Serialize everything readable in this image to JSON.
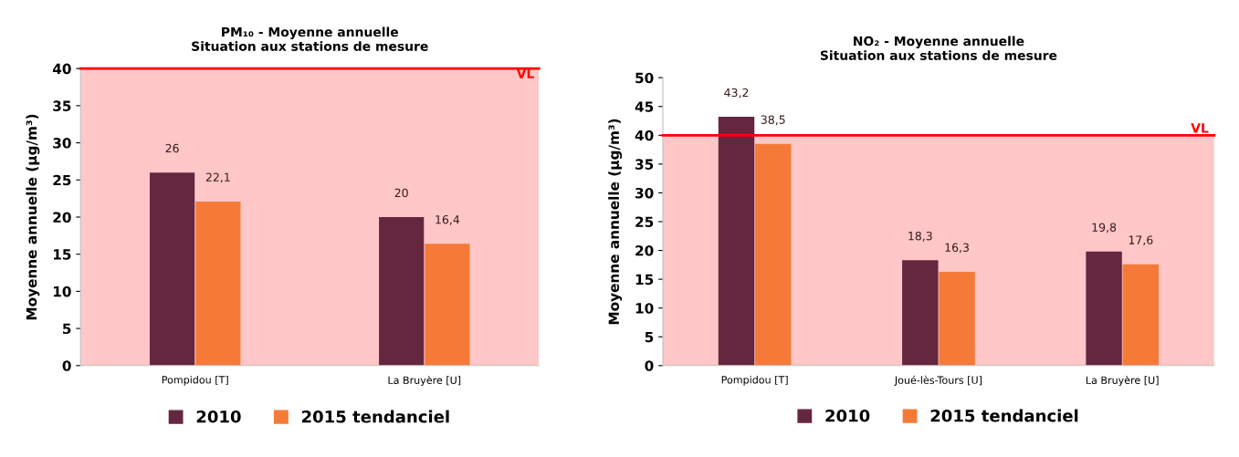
{
  "chart_data": [
    {
      "type": "bar",
      "title": "PM₁₀ - Moyenne annuelle\nSituation aux stations de mesure",
      "ylabel": "Moyenne annuelle (µg/m³)",
      "categories": [
        "Pompidou [T]",
        "La Bruyère [U]"
      ],
      "series": [
        {
          "name": "2010",
          "color": "#652640",
          "values": [
            26,
            20
          ],
          "value_labels": [
            "26",
            "20"
          ]
        },
        {
          "name": "2015 tendanciel",
          "color": "#f57a38",
          "values": [
            22.1,
            16.4
          ],
          "value_labels": [
            "22,1",
            "16,4"
          ]
        }
      ],
      "ylim": [
        0,
        40
      ],
      "yticks": [
        0,
        5,
        10,
        15,
        20,
        25,
        30,
        35,
        40
      ],
      "bands": [
        {
          "axis": "y",
          "from": 0,
          "to": 40,
          "color": "#ffc7c7"
        }
      ],
      "ref_lines": [
        {
          "axis": "y",
          "value": 40,
          "label": "VL",
          "color": "#ff0000"
        }
      ],
      "legend": "bottom",
      "grid": false
    },
    {
      "type": "bar",
      "title": "NO₂ - Moyenne annuelle\nSituation aux stations de mesure",
      "ylabel": "Moyenne annuelle (µg/m³)",
      "categories": [
        "Pompidou [T]",
        "Joué-lès-Tours [U]",
        "La Bruyère [U]"
      ],
      "series": [
        {
          "name": "2010",
          "color": "#652640",
          "values": [
            43.2,
            18.3,
            19.8
          ],
          "value_labels": [
            "43,2",
            "18,3",
            "19,8"
          ]
        },
        {
          "name": "2015 tendanciel",
          "color": "#f57a38",
          "values": [
            38.5,
            16.3,
            17.6
          ],
          "value_labels": [
            "38,5",
            "16,3",
            "17,6"
          ]
        }
      ],
      "ylim": [
        0,
        50
      ],
      "yticks": [
        0,
        5,
        10,
        15,
        20,
        25,
        30,
        35,
        40,
        45,
        50
      ],
      "bands": [
        {
          "axis": "y",
          "from": 0,
          "to": 40,
          "color": "#ffc7c7"
        }
      ],
      "ref_lines": [
        {
          "axis": "y",
          "value": 40,
          "label": "VL",
          "color": "#ff0000"
        }
      ],
      "legend": "bottom",
      "grid": false
    }
  ]
}
